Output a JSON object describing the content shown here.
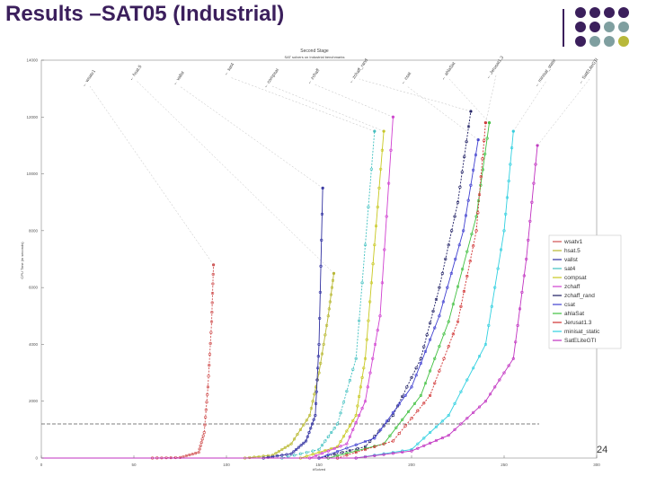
{
  "slide": {
    "title": "Results –SAT05 (Industrial)",
    "page_number": "24",
    "accent_colors": [
      "#3b1f5c",
      "#7f9fa0",
      "#b8b83a"
    ]
  },
  "chart_data": {
    "type": "line",
    "title": "Second Stage",
    "subtitle": "SAT solvers on Industrial benchmarks",
    "xlabel": "#Solved",
    "ylabel": "CPU Time (in seconds)",
    "xlim": [
      0,
      300
    ],
    "ylim": [
      0,
      14000
    ],
    "x_ticks": [
      0,
      50,
      100,
      150,
      200,
      250,
      300
    ],
    "y_ticks": [
      0,
      2000,
      4000,
      6000,
      8000,
      10000,
      12000,
      14000
    ],
    "y_tick_labels": [
      "0",
      "2000",
      "4000",
      "6000",
      "8000",
      "10000",
      "12000",
      "14000"
    ],
    "timeout_line": 1200,
    "legend_position": "right",
    "series": [
      {
        "name": "wsatv1",
        "color": "#d05050",
        "x": [
          0,
          60,
          75,
          85,
          88,
          90,
          92,
          93
        ],
        "y": [
          0,
          0,
          20,
          200,
          900,
          2500,
          4800,
          6800
        ]
      },
      {
        "name": "hsat.5",
        "color": "#b8b830",
        "x": [
          0,
          110,
          125,
          135,
          145,
          150,
          155,
          158
        ],
        "y": [
          0,
          0,
          100,
          500,
          1500,
          3000,
          5000,
          6500
        ]
      },
      {
        "name": "vallst",
        "color": "#3030a0",
        "x": [
          0,
          120,
          135,
          143,
          148,
          150,
          152
        ],
        "y": [
          0,
          0,
          150,
          600,
          1500,
          4000,
          9500
        ]
      },
      {
        "name": "sat4",
        "color": "#40c0c0",
        "x": [
          0,
          130,
          150,
          160,
          170,
          180
        ],
        "y": [
          0,
          0,
          300,
          1200,
          3500,
          11500
        ]
      },
      {
        "name": "compsat",
        "color": "#c8c820",
        "x": [
          0,
          140,
          160,
          170,
          175,
          180,
          185
        ],
        "y": [
          0,
          0,
          400,
          1500,
          3500,
          7500,
          11500
        ]
      },
      {
        "name": "zchaff",
        "color": "#d040d0",
        "x": [
          0,
          145,
          165,
          175,
          183,
          190
        ],
        "y": [
          0,
          0,
          500,
          2000,
          5000,
          12000
        ]
      },
      {
        "name": "zchaff_rand",
        "color": "#1a1a60",
        "x": [
          0,
          150,
          175,
          190,
          205,
          215,
          225,
          232
        ],
        "y": [
          0,
          0,
          400,
          1500,
          3500,
          6000,
          9000,
          12200
        ]
      },
      {
        "name": "csat",
        "color": "#4040d0",
        "x": [
          0,
          150,
          180,
          200,
          215,
          228,
          236
        ],
        "y": [
          0,
          0,
          700,
          2500,
          5000,
          8000,
          11200
        ]
      },
      {
        "name": "ahlaSat",
        "color": "#40c040",
        "x": [
          0,
          155,
          185,
          205,
          220,
          235,
          242
        ],
        "y": [
          0,
          0,
          500,
          2200,
          4800,
          8500,
          11800
        ]
      },
      {
        "name": "Jerusat1.3",
        "color": "#d03030",
        "x": [
          0,
          160,
          190,
          210,
          225,
          235,
          240
        ],
        "y": [
          0,
          0,
          600,
          2200,
          4800,
          8000,
          11800
        ]
      },
      {
        "name": "minisat_static",
        "color": "#30d0e0",
        "x": [
          0,
          170,
          200,
          220,
          240,
          250,
          255
        ],
        "y": [
          0,
          0,
          300,
          1500,
          4000,
          8000,
          11500
        ]
      },
      {
        "name": "SatELiteGTI",
        "color": "#c030c0",
        "x": [
          0,
          170,
          200,
          220,
          240,
          255,
          262,
          268
        ],
        "y": [
          0,
          0,
          250,
          800,
          2000,
          3500,
          7000,
          11000
        ]
      }
    ]
  }
}
